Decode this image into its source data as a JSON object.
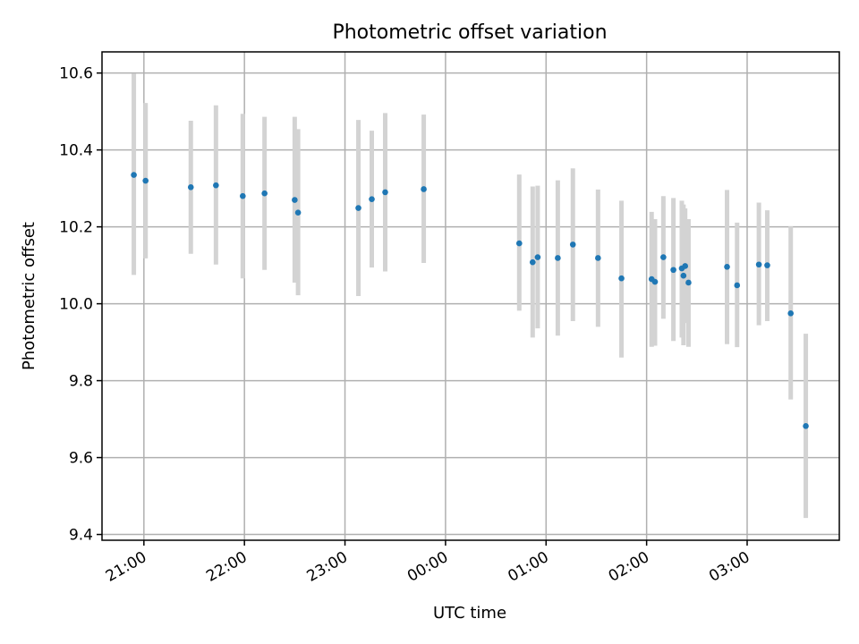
{
  "chart_data": {
    "type": "scatter",
    "title": "Photometric offset variation",
    "xlabel": "UTC time",
    "ylabel": "Photometric offset",
    "x_axis": {
      "start": "20:35",
      "end": "03:55",
      "ticks": [
        "21:00",
        "22:00",
        "23:00",
        "00:00",
        "01:00",
        "02:00",
        "03:00"
      ],
      "tick_labels_rotated": true
    },
    "ylim": [
      9.385,
      10.655
    ],
    "yticks": [
      9.4,
      9.6,
      9.8,
      10.0,
      10.2,
      10.4,
      10.6
    ],
    "yticklabels": [
      "9.4",
      "9.6",
      "9.8",
      "10.0",
      "10.2",
      "10.4",
      "10.6"
    ],
    "grid": true,
    "colors": {
      "points": "#1f77b4",
      "error_bars": "#d3d3d3"
    },
    "points": [
      {
        "x": "20:54",
        "y": 10.335,
        "err_low": 10.075,
        "err_high": 10.598
      },
      {
        "x": "21:01",
        "y": 10.32,
        "err_low": 10.118,
        "err_high": 10.522
      },
      {
        "x": "21:28",
        "y": 10.303,
        "err_low": 10.13,
        "err_high": 10.476
      },
      {
        "x": "21:43",
        "y": 10.308,
        "err_low": 10.102,
        "err_high": 10.516
      },
      {
        "x": "21:59",
        "y": 10.28,
        "err_low": 10.066,
        "err_high": 10.494
      },
      {
        "x": "22:12",
        "y": 10.287,
        "err_low": 10.088,
        "err_high": 10.486
      },
      {
        "x": "22:30",
        "y": 10.27,
        "err_low": 10.055,
        "err_high": 10.486
      },
      {
        "x": "22:32",
        "y": 10.237,
        "err_low": 10.022,
        "err_high": 10.454
      },
      {
        "x": "23:08",
        "y": 10.249,
        "err_low": 10.02,
        "err_high": 10.478
      },
      {
        "x": "23:16",
        "y": 10.272,
        "err_low": 10.094,
        "err_high": 10.45
      },
      {
        "x": "23:24",
        "y": 10.29,
        "err_low": 10.084,
        "err_high": 10.496
      },
      {
        "x": "23:47",
        "y": 10.298,
        "err_low": 10.106,
        "err_high": 10.492
      },
      {
        "x": "00:44",
        "y": 10.157,
        "err_low": 9.982,
        "err_high": 10.336
      },
      {
        "x": "00:52",
        "y": 10.108,
        "err_low": 9.912,
        "err_high": 10.305
      },
      {
        "x": "00:55",
        "y": 10.121,
        "err_low": 9.936,
        "err_high": 10.307
      },
      {
        "x": "01:07",
        "y": 10.119,
        "err_low": 9.917,
        "err_high": 10.321
      },
      {
        "x": "01:16",
        "y": 10.154,
        "err_low": 9.955,
        "err_high": 10.352
      },
      {
        "x": "01:31",
        "y": 10.119,
        "err_low": 9.94,
        "err_high": 10.297
      },
      {
        "x": "01:45",
        "y": 10.066,
        "err_low": 9.86,
        "err_high": 10.268
      },
      {
        "x": "02:03",
        "y": 10.064,
        "err_low": 9.888,
        "err_high": 10.239
      },
      {
        "x": "02:05",
        "y": 10.057,
        "err_low": 9.891,
        "err_high": 10.22
      },
      {
        "x": "02:10",
        "y": 10.121,
        "err_low": 9.961,
        "err_high": 10.28
      },
      {
        "x": "02:16",
        "y": 10.088,
        "err_low": 9.903,
        "err_high": 10.275
      },
      {
        "x": "02:21",
        "y": 10.092,
        "err_low": 9.912,
        "err_high": 10.268
      },
      {
        "x": "02:22",
        "y": 10.073,
        "err_low": 9.892,
        "err_high": 10.258
      },
      {
        "x": "02:23",
        "y": 10.098,
        "err_low": 9.95,
        "err_high": 10.248
      },
      {
        "x": "02:25",
        "y": 10.055,
        "err_low": 9.888,
        "err_high": 10.22
      },
      {
        "x": "02:48",
        "y": 10.096,
        "err_low": 9.895,
        "err_high": 10.296
      },
      {
        "x": "02:54",
        "y": 10.048,
        "err_low": 9.887,
        "err_high": 10.211
      },
      {
        "x": "03:07",
        "y": 10.102,
        "err_low": 9.944,
        "err_high": 10.263
      },
      {
        "x": "03:12",
        "y": 10.1,
        "err_low": 9.955,
        "err_high": 10.243
      },
      {
        "x": "03:26",
        "y": 9.975,
        "err_low": 9.751,
        "err_high": 10.201
      },
      {
        "x": "03:35",
        "y": 9.682,
        "err_low": 9.443,
        "err_high": 9.922
      }
    ]
  }
}
